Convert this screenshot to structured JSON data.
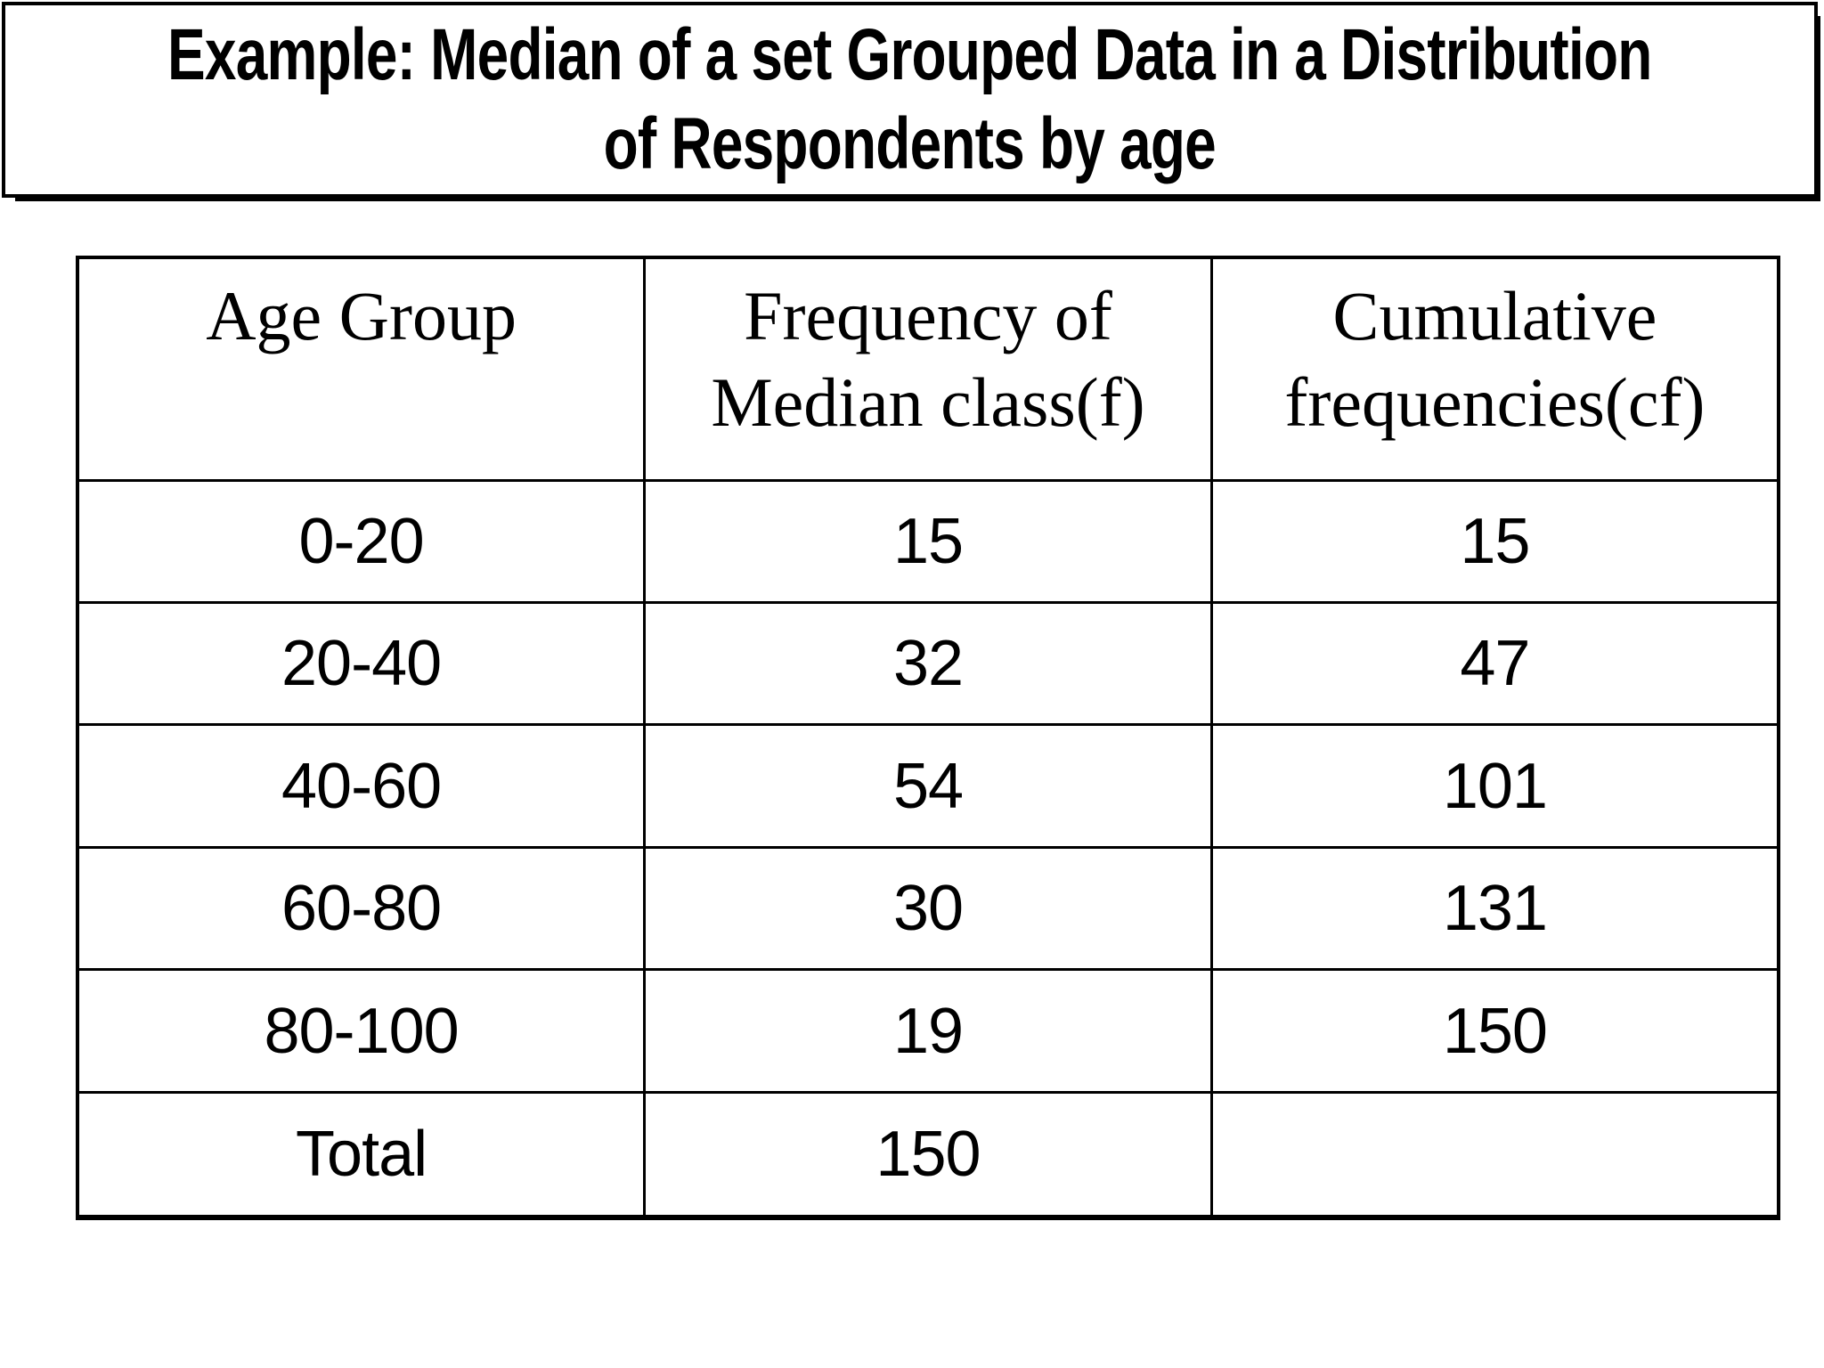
{
  "slide": {
    "title_line1": "Example: Median of a set Grouped Data in a Distribution",
    "title_line2": "of Respondents by age"
  },
  "table": {
    "headers": {
      "age_group": "Age Group",
      "frequency": "Frequency of Median class(f)",
      "cumulative": "Cumulative frequencies(cf)"
    },
    "rows": [
      {
        "age": "0-20",
        "f": "15",
        "cf": "15"
      },
      {
        "age": "20-40",
        "f": "32",
        "cf": "47"
      },
      {
        "age": "40-60",
        "f": "54",
        "cf": "101"
      },
      {
        "age": "60-80",
        "f": "30",
        "cf": "131"
      },
      {
        "age": "80-100",
        "f": "19",
        "cf": "150"
      },
      {
        "age": "Total",
        "f": "150",
        "cf": ""
      }
    ]
  },
  "colors": {
    "ink": "#000000",
    "background": "#ffffff"
  },
  "chart_data": {
    "type": "table",
    "title": "Example: Median of a set Grouped Data in a Distribution of Respondents by age",
    "columns": [
      "Age Group",
      "Frequency of Median class(f)",
      "Cumulative frequencies(cf)"
    ],
    "rows": [
      [
        "0-20",
        15,
        15
      ],
      [
        "20-40",
        32,
        47
      ],
      [
        "40-60",
        54,
        101
      ],
      [
        "60-80",
        30,
        131
      ],
      [
        "80-100",
        19,
        150
      ],
      [
        "Total",
        150,
        null
      ]
    ]
  }
}
